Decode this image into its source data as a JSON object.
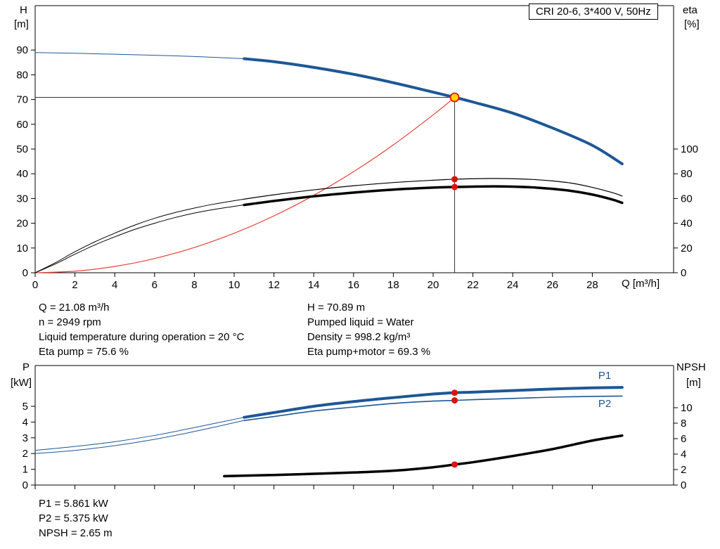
{
  "title_box": "CRI 20-6, 3*400 V, 50Hz",
  "info_top": {
    "left": [
      "Q = 21.08 m³/h",
      "n = 2949 rpm",
      "Liquid temperature during operation = 20 °C",
      "Eta pump = 75.6 %"
    ],
    "right": [
      "H = 70.89 m",
      "Pumped liquid = Water",
      "Density = 998.2 kg/m³",
      "Eta pump+motor = 69.3 %"
    ]
  },
  "info_bottom": [
    "P1 = 5.861 kW",
    "P2 = 5.375 kW",
    "NPSH = 2.65 m"
  ],
  "chart_data": [
    {
      "type": "line",
      "title": "CRI 20-6, 3*400 V, 50Hz",
      "xlabel": "Q [m³/h]",
      "x_ticks": [
        0,
        2,
        4,
        6,
        8,
        10,
        12,
        14,
        16,
        18,
        20,
        22,
        24,
        26,
        28
      ],
      "y_left": {
        "name": "H",
        "unit": "[m]",
        "ticks": [
          0,
          10,
          20,
          30,
          40,
          50,
          60,
          70,
          80,
          90
        ]
      },
      "y_right": {
        "name": "eta",
        "unit": "[%]",
        "ticks": [
          0,
          20,
          40,
          60,
          80,
          100
        ]
      },
      "crosshair": {
        "q": 21.08,
        "value": 70.89
      },
      "series": [
        {
          "name": "system-parabola",
          "axis": "left",
          "color": "#e8413c",
          "width": 1.2,
          "points": [
            [
              0,
              0
            ],
            [
              2,
              0.64
            ],
            [
              4,
              2.55
            ],
            [
              6,
              5.74
            ],
            [
              8,
              10.21
            ],
            [
              10,
              15.95
            ],
            [
              12,
              22.97
            ],
            [
              14,
              31.27
            ],
            [
              16,
              40.83
            ],
            [
              18,
              51.68
            ],
            [
              20,
              63.8
            ],
            [
              21.08,
              70.89
            ]
          ]
        },
        {
          "name": "eta-pump-ext",
          "axis": "right",
          "color": "#000000",
          "width": 1,
          "points": [
            [
              0,
              0
            ],
            [
              1,
              8
            ],
            [
              2,
              17
            ],
            [
              3,
              25
            ],
            [
              4,
              32
            ],
            [
              5,
              38.5
            ],
            [
              6,
              44
            ],
            [
              7,
              48.5
            ],
            [
              8,
              52.3
            ],
            [
              9,
              55.5
            ],
            [
              10.5,
              59.5
            ]
          ]
        },
        {
          "name": "eta-pump",
          "axis": "right",
          "color": "#000000",
          "width": 1.2,
          "points": [
            [
              10.5,
              59.5
            ],
            [
              12,
              63
            ],
            [
              14,
              67
            ],
            [
              16,
              70.3
            ],
            [
              18,
              72.9
            ],
            [
              20,
              74.8
            ],
            [
              21.08,
              75.6
            ],
            [
              22,
              76
            ],
            [
              23,
              76.2
            ],
            [
              24,
              76
            ],
            [
              25,
              75.4
            ],
            [
              26,
              74.2
            ],
            [
              27,
              72.3
            ],
            [
              28,
              69
            ],
            [
              29,
              64.8
            ],
            [
              29.5,
              62
            ]
          ]
        },
        {
          "name": "eta-pump-motor-ext",
          "axis": "right",
          "color": "#000000",
          "width": 1,
          "points": [
            [
              0,
              0
            ],
            [
              1,
              7
            ],
            [
              2,
              15
            ],
            [
              3,
              22.5
            ],
            [
              4,
              29
            ],
            [
              5,
              35
            ],
            [
              6,
              40
            ],
            [
              7,
              44.5
            ],
            [
              8,
              48.2
            ],
            [
              9,
              51.2
            ],
            [
              10.5,
              54.8
            ]
          ]
        },
        {
          "name": "eta-pump-motor",
          "axis": "right",
          "color": "#000000",
          "width": 3.5,
          "points": [
            [
              10.5,
              54.8
            ],
            [
              12,
              58
            ],
            [
              14,
              61.8
            ],
            [
              16,
              64.8
            ],
            [
              18,
              67.2
            ],
            [
              20,
              68.8
            ],
            [
              21.08,
              69.3
            ],
            [
              22,
              69.6
            ],
            [
              23,
              69.8
            ],
            [
              24,
              69.6
            ],
            [
              25,
              69
            ],
            [
              26,
              67.8
            ],
            [
              27,
              66
            ],
            [
              28,
              63.2
            ],
            [
              29,
              59.2
            ],
            [
              29.5,
              56.5
            ]
          ]
        },
        {
          "name": "h-q-ext",
          "axis": "left",
          "color": "#1d5796",
          "width": 1,
          "points": [
            [
              0,
              89
            ],
            [
              2,
              88.7
            ],
            [
              4,
              88.3
            ],
            [
              6,
              87.9
            ],
            [
              8,
              87.4
            ],
            [
              10.5,
              86.5
            ]
          ]
        },
        {
          "name": "h-q",
          "axis": "left",
          "color": "#1d5796",
          "width": 4,
          "points": [
            [
              10.5,
              86.5
            ],
            [
              12,
              85.3
            ],
            [
              14,
              83
            ],
            [
              16,
              80.2
            ],
            [
              18,
              76.8
            ],
            [
              20,
              73
            ],
            [
              21.08,
              70.89
            ],
            [
              22,
              69
            ],
            [
              24,
              64.5
            ],
            [
              26,
              58.5
            ],
            [
              28,
              51.5
            ],
            [
              29.5,
              44
            ]
          ]
        }
      ],
      "series_labels": [],
      "markers": [
        {
          "name": "duty-point",
          "axis": "left",
          "q": 21.08,
          "value": 70.89,
          "r": 6,
          "fill": "#ffd800",
          "stroke": "#e01010"
        },
        {
          "name": "eta-pump-point",
          "axis": "right",
          "q": 21.08,
          "value": 75.6,
          "r": 4.5,
          "fill": "#e01010"
        },
        {
          "name": "eta-pump-motor-point",
          "axis": "right",
          "q": 21.08,
          "value": 69.3,
          "r": 4.5,
          "fill": "#e01010"
        }
      ]
    },
    {
      "type": "line",
      "title": "",
      "xlabel": "",
      "x_ticks": [
        0,
        2,
        4,
        6,
        8,
        10,
        12,
        14,
        16,
        18,
        20,
        22,
        24,
        26,
        28
      ],
      "y_left": {
        "name": "P",
        "unit": "[kW]",
        "ticks": [
          0,
          1,
          2,
          3,
          4,
          5
        ]
      },
      "y_right": {
        "name": "NPSH",
        "unit": "[m]",
        "ticks": [
          0,
          2,
          4,
          6,
          8,
          10
        ]
      },
      "series": [
        {
          "name": "p1-ext",
          "axis": "left",
          "color": "#1d5796",
          "width": 1,
          "points": [
            [
              0,
              2.2
            ],
            [
              2,
              2.45
            ],
            [
              4,
              2.75
            ],
            [
              6,
              3.15
            ],
            [
              8,
              3.65
            ],
            [
              10.5,
              4.3
            ]
          ]
        },
        {
          "name": "p2-ext",
          "axis": "left",
          "color": "#1d5796",
          "width": 1,
          "points": [
            [
              0,
              2.0
            ],
            [
              2,
              2.2
            ],
            [
              4,
              2.5
            ],
            [
              6,
              2.9
            ],
            [
              8,
              3.4
            ],
            [
              10.5,
              4.1
            ]
          ]
        },
        {
          "name": "p1",
          "axis": "left",
          "color": "#1d5796",
          "width": 4,
          "points": [
            [
              10.5,
              4.3
            ],
            [
              12,
              4.6
            ],
            [
              14,
              5.0
            ],
            [
              16,
              5.3
            ],
            [
              18,
              5.55
            ],
            [
              20,
              5.78
            ],
            [
              21.08,
              5.861
            ],
            [
              22,
              5.9
            ],
            [
              24,
              6.0
            ],
            [
              26,
              6.1
            ],
            [
              28,
              6.17
            ],
            [
              29.5,
              6.2
            ]
          ]
        },
        {
          "name": "p2",
          "axis": "left",
          "color": "#1d5796",
          "width": 1.6,
          "points": [
            [
              10.5,
              4.1
            ],
            [
              12,
              4.35
            ],
            [
              14,
              4.7
            ],
            [
              16,
              4.95
            ],
            [
              18,
              5.18
            ],
            [
              20,
              5.33
            ],
            [
              21.08,
              5.375
            ],
            [
              22,
              5.42
            ],
            [
              24,
              5.5
            ],
            [
              26,
              5.58
            ],
            [
              28,
              5.63
            ],
            [
              29.5,
              5.65
            ]
          ]
        },
        {
          "name": "npsh",
          "axis": "right",
          "color": "#000000",
          "width": 3.5,
          "points": [
            [
              9.5,
              1.15
            ],
            [
              12,
              1.3
            ],
            [
              14,
              1.45
            ],
            [
              16,
              1.62
            ],
            [
              18,
              1.85
            ],
            [
              20,
              2.3
            ],
            [
              21.08,
              2.65
            ],
            [
              22,
              2.95
            ],
            [
              24,
              3.75
            ],
            [
              26,
              4.65
            ],
            [
              28,
              5.75
            ],
            [
              29.5,
              6.4
            ]
          ]
        }
      ],
      "series_labels": [
        {
          "text": "P1",
          "axis": "left",
          "q": 28.3,
          "value": 6.75,
          "color": "#1d5796"
        },
        {
          "text": "P2",
          "axis": "left",
          "q": 28.3,
          "value": 4.95,
          "color": "#1d5796"
        }
      ],
      "markers": [
        {
          "name": "p1-point",
          "axis": "left",
          "q": 21.08,
          "value": 5.861,
          "r": 4.5,
          "fill": "#e01010"
        },
        {
          "name": "p2-point",
          "axis": "left",
          "q": 21.08,
          "value": 5.375,
          "r": 4.5,
          "fill": "#e01010"
        },
        {
          "name": "npsh-point",
          "axis": "right",
          "q": 21.08,
          "value": 2.65,
          "r": 4.5,
          "fill": "#e01010"
        }
      ]
    }
  ]
}
